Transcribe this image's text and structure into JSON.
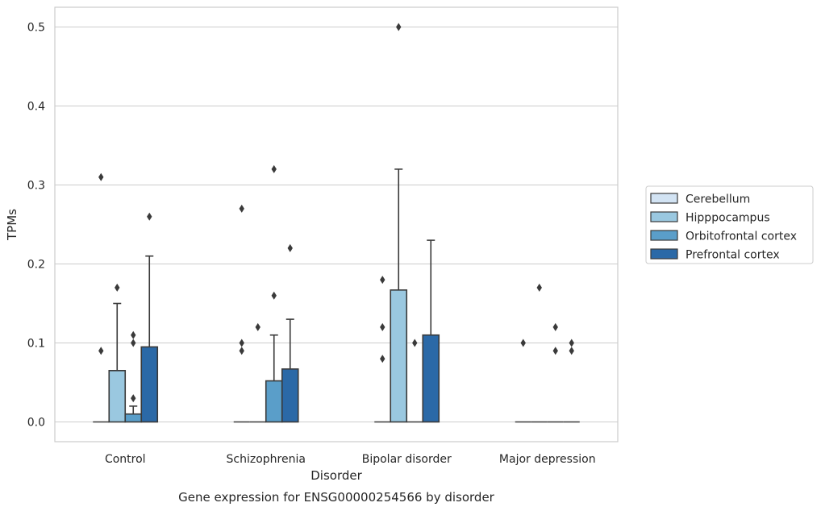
{
  "chart_data": {
    "type": "bar",
    "title": "",
    "xlabel": "Disorder",
    "ylabel": "TPMs",
    "caption": "Gene expression for ENSG00000254566 by disorder",
    "categories": [
      "Control",
      "Schizophrenia",
      "Bipolar disorder",
      "Major depression"
    ],
    "ylim": [
      -0.025,
      0.525
    ],
    "yticks": [
      0.0,
      0.1,
      0.2,
      0.3,
      0.4,
      0.5
    ],
    "ytick_labels": [
      "0.0",
      "0.1",
      "0.2",
      "0.3",
      "0.4",
      "0.5"
    ],
    "grid": true,
    "legend_position": "right",
    "series": [
      {
        "name": "Cerebellum",
        "color": "#d2e3f3",
        "values": [
          0,
          0,
          0,
          0
        ],
        "whisker_high": [
          0,
          0,
          0,
          0
        ],
        "outliers": [
          [
            0.09,
            0.31
          ],
          [
            0.1,
            0.09,
            0.27
          ],
          [
            0.18,
            0.12,
            0.08
          ],
          [
            0.1
          ]
        ]
      },
      {
        "name": "Hipppocampus",
        "color": "#9ac8e0",
        "values": [
          0.065,
          0,
          0.167,
          0
        ],
        "whisker_high": [
          0.15,
          0,
          0.32,
          0
        ],
        "outliers": [
          [
            0.17
          ],
          [
            0.12
          ],
          [
            0.5
          ],
          [
            0.17
          ]
        ]
      },
      {
        "name": "Orbitofrontal cortex",
        "color": "#5a9ec9",
        "values": [
          0.01,
          0.052,
          0,
          0
        ],
        "whisker_high": [
          0.02,
          0.11,
          0,
          0
        ],
        "outliers": [
          [
            0.03,
            0.1,
            0.11
          ],
          [
            0.16,
            0.32
          ],
          [
            0.1
          ],
          [
            0.12,
            0.09
          ]
        ]
      },
      {
        "name": "Prefrontal cortex",
        "color": "#2b69a7",
        "values": [
          0.095,
          0.067,
          0.11,
          0
        ],
        "whisker_high": [
          0.21,
          0.13,
          0.23,
          0
        ],
        "outliers": [
          [
            0.26
          ],
          [
            0.22
          ],
          [],
          [
            0.1,
            0.09
          ]
        ]
      }
    ]
  }
}
